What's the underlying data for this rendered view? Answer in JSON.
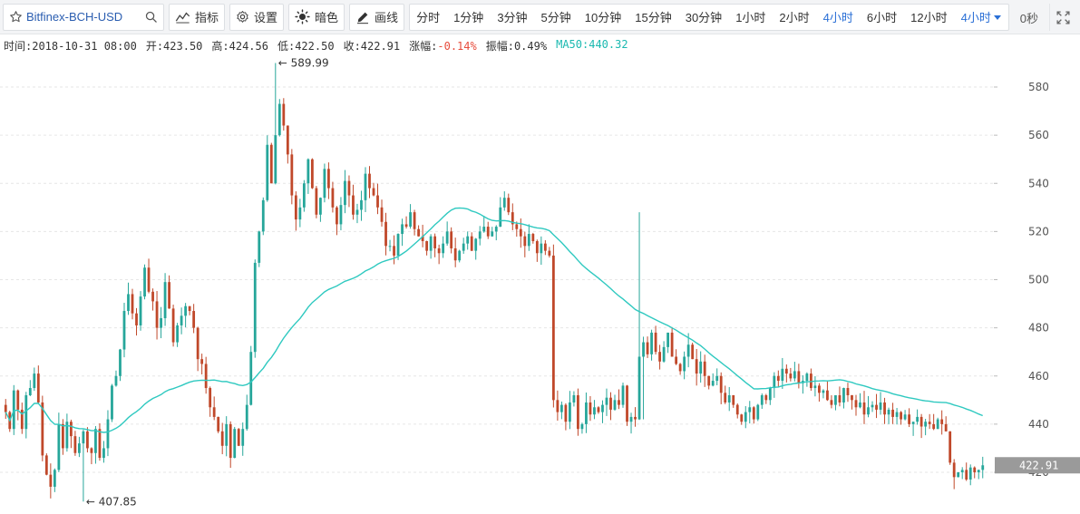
{
  "toolbar": {
    "symbol": "Bitfinex-BCH-USD",
    "indicators_label": "指标",
    "settings_label": "设置",
    "theme_label": "暗色",
    "draw_label": "画线",
    "intervals": [
      "分时",
      "1分钟",
      "3分钟",
      "5分钟",
      "10分钟",
      "15分钟",
      "30分钟",
      "1小时",
      "2小时",
      "4小时",
      "6小时",
      "12小时"
    ],
    "active_interval": "4小时",
    "dropdown_label": "4小时",
    "timer": "0秒"
  },
  "info": {
    "time": "时间:2018-10-31 08:00",
    "open": "开:423.50",
    "high": "高:424.56",
    "low": "低:422.50",
    "close": "收:422.91",
    "change_label": "涨幅:",
    "change_value": "-0.14%",
    "amplitude": "振幅:0.49%",
    "ma": "MA50:440.32"
  },
  "colors": {
    "up": "#26a69a",
    "down": "#c0482a",
    "ma": "#2fc9c0",
    "grid": "#e6e6e6",
    "price_tag_bg": "#9a9a9a",
    "accent": "#2a6fd6"
  },
  "chart_data": {
    "type": "candlestick",
    "symbol": "Bitfinex-BCH-USD",
    "interval": "4小时",
    "y_ticks": [
      420,
      440,
      460,
      480,
      500,
      520,
      540,
      560,
      580
    ],
    "ylim": [
      404,
      599
    ],
    "last_price": "422.91",
    "max_label": "589.99",
    "min_label": "407.85",
    "closes": [
      445,
      438,
      454,
      446,
      438,
      452,
      455,
      461,
      449,
      427,
      419,
      414,
      421,
      440,
      430,
      441,
      435,
      428,
      432,
      437,
      430,
      428,
      438,
      426,
      430,
      442,
      456,
      460,
      471,
      487,
      494,
      486,
      481,
      493,
      505,
      495,
      491,
      480,
      484,
      499,
      488,
      474,
      481,
      485,
      489,
      487,
      480,
      467,
      465,
      455,
      447,
      443,
      437,
      431,
      440,
      426,
      438,
      431,
      438,
      448,
      470,
      507,
      520,
      533,
      556,
      540,
      560,
      573,
      564,
      552,
      535,
      525,
      530,
      540,
      550,
      538,
      527,
      534,
      546,
      538,
      530,
      523,
      531,
      541,
      535,
      527,
      529,
      533,
      544,
      538,
      535,
      530,
      524,
      514,
      514,
      510,
      519,
      523,
      522,
      528,
      521,
      518,
      516,
      512,
      518,
      513,
      511,
      515,
      520,
      513,
      508,
      512,
      515,
      518,
      512,
      517,
      520,
      522,
      518,
      520,
      522,
      530,
      534,
      528,
      523,
      521,
      518,
      514,
      519,
      516,
      511,
      515,
      512,
      510,
      450,
      445,
      448,
      441,
      449,
      452,
      438,
      440,
      449,
      444,
      447,
      445,
      448,
      451,
      446,
      450,
      448,
      456,
      441,
      443,
      442,
      468,
      474,
      469,
      478,
      470,
      466,
      472,
      478,
      468,
      465,
      462,
      468,
      473,
      467,
      461,
      466,
      460,
      456,
      458,
      460,
      453,
      449,
      452,
      448,
      444,
      441,
      445,
      447,
      442,
      448,
      452,
      450,
      455,
      460,
      458,
      463,
      461,
      459,
      462,
      457,
      458,
      461,
      455,
      456,
      453,
      454,
      450,
      448,
      452,
      449,
      455,
      452,
      450,
      447,
      449,
      444,
      447,
      448,
      446,
      449,
      444,
      446,
      443,
      445,
      442,
      444,
      440,
      441,
      443,
      439,
      441,
      440,
      438,
      442,
      440,
      437,
      424,
      418,
      420,
      421,
      417,
      422,
      420,
      421,
      422.91
    ]
  }
}
